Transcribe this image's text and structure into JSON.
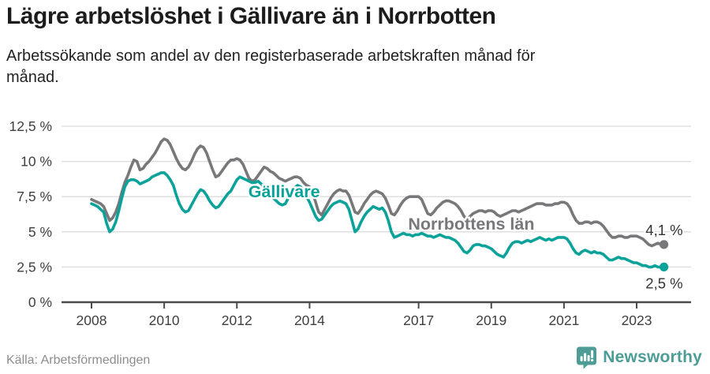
{
  "header": {
    "title": "Lägre arbetslöshet i Gällivare än i Norrbotten",
    "subtitle": "Arbetssökande som andel av den registerbaserade arbetskraften månad för månad.",
    "subtitle_line1": "Arbetssökande som andel av den registerbaserade arbetskraften månad för",
    "subtitle_line2": "månad."
  },
  "footer": {
    "source": "Källa: Arbetsförmedlingen",
    "logo_text": "Newsworthy"
  },
  "colors": {
    "gallivare": "#0ba29a",
    "norrbotten": "#78787a",
    "gridline": "#dcdcdc",
    "axis": "#4a4a4a",
    "tick_label": "#3f3f3f",
    "end_label": "#333333",
    "logo": "#4e9c96",
    "background": "#ffffff"
  },
  "chart_data": {
    "type": "line",
    "title": "Lägre arbetslöshet i Gällivare än i Norrbotten",
    "xlabel": "",
    "ylabel": "Arbetssökande som andel av den registerbaserade arbetskraften",
    "unit": "%",
    "grid": true,
    "legend_position": "inline-labels",
    "x_start_year": 2008,
    "x_months_per_step": 1,
    "x_end_year_approx": 2023.75,
    "ylim": [
      0,
      12.5
    ],
    "y_ticks": [
      {
        "value": 0,
        "label": "0 %"
      },
      {
        "value": 2.5,
        "label": "2,5 %"
      },
      {
        "value": 5,
        "label": "5 %"
      },
      {
        "value": 7.5,
        "label": "7,5 %"
      },
      {
        "value": 10,
        "label": "10 %"
      },
      {
        "value": 12.5,
        "label": "12,5 %"
      }
    ],
    "x_ticks": [
      {
        "value": 2008,
        "label": "2008"
      },
      {
        "value": 2010,
        "label": "2010"
      },
      {
        "value": 2012,
        "label": "2012"
      },
      {
        "value": 2014,
        "label": "2014"
      },
      {
        "value": 2017,
        "label": "2017"
      },
      {
        "value": 2019,
        "label": "2019"
      },
      {
        "value": 2021,
        "label": "2021"
      },
      {
        "value": 2023,
        "label": "2023"
      }
    ],
    "series": [
      {
        "name": "Norrbottens län",
        "key": "norrbotten",
        "end_label": "4,1 %",
        "end_value": 4.1,
        "end_label_position": "above",
        "inline_label": {
          "year": 2018.45,
          "pct": 5.55
        },
        "values": [
          7.3,
          7.2,
          7.1,
          7.0,
          6.8,
          6.3,
          5.8,
          6.0,
          6.4,
          7.0,
          7.8,
          8.5,
          9.0,
          9.6,
          10.1,
          10.0,
          9.4,
          9.5,
          9.8,
          10.0,
          10.3,
          10.6,
          11.0,
          11.4,
          11.6,
          11.5,
          11.2,
          10.7,
          10.2,
          9.8,
          9.5,
          9.4,
          9.6,
          10.0,
          10.5,
          10.9,
          11.1,
          11.0,
          10.6,
          10.0,
          9.4,
          8.9,
          9.0,
          9.3,
          9.6,
          9.9,
          10.1,
          10.1,
          10.2,
          10.1,
          9.8,
          9.3,
          8.8,
          8.6,
          8.7,
          9.0,
          9.3,
          9.6,
          9.5,
          9.3,
          9.2,
          9.0,
          8.8,
          8.7,
          8.6,
          8.7,
          8.8,
          8.9,
          8.9,
          8.8,
          8.5,
          8.3,
          8.2,
          7.8,
          7.1,
          6.4,
          6.2,
          6.6,
          7.0,
          7.4,
          7.7,
          7.9,
          8.0,
          7.9,
          7.9,
          7.6,
          7.0,
          6.4,
          6.3,
          6.6,
          7.0,
          7.3,
          7.6,
          7.8,
          7.9,
          7.8,
          7.7,
          7.4,
          6.9,
          6.3,
          6.2,
          6.5,
          6.9,
          7.2,
          7.4,
          7.5,
          7.5,
          7.5,
          7.5,
          7.3,
          6.8,
          6.3,
          6.2,
          6.4,
          6.7,
          6.9,
          7.1,
          7.2,
          7.2,
          7.1,
          7.0,
          6.8,
          6.5,
          6.1,
          5.9,
          6.1,
          6.3,
          6.4,
          6.5,
          6.5,
          6.4,
          6.5,
          6.5,
          6.4,
          6.2,
          6.1,
          6.2,
          6.3,
          6.4,
          6.5,
          6.5,
          6.4,
          6.5,
          6.6,
          6.7,
          6.8,
          6.9,
          7.0,
          7.0,
          7.0,
          6.9,
          6.9,
          6.9,
          7.0,
          7.0,
          7.1,
          7.1,
          7.0,
          6.7,
          6.2,
          5.8,
          5.6,
          5.6,
          5.7,
          5.7,
          5.6,
          5.7,
          5.7,
          5.6,
          5.4,
          5.1,
          4.8,
          4.6,
          4.6,
          4.7,
          4.7,
          4.6,
          4.6,
          4.7,
          4.7,
          4.7,
          4.6,
          4.5,
          4.3,
          4.1,
          4.0,
          4.1,
          4.2,
          4.1,
          4.1
        ]
      },
      {
        "name": "Gällivare",
        "key": "gallivare",
        "end_label": "2,5 %",
        "end_value": 2.5,
        "end_label_position": "below",
        "inline_label": {
          "year": 2013.3,
          "pct": 7.85
        },
        "values": [
          7.0,
          6.9,
          6.8,
          6.6,
          6.4,
          5.6,
          5.0,
          5.2,
          5.7,
          6.5,
          7.4,
          8.2,
          8.6,
          8.7,
          8.7,
          8.6,
          8.4,
          8.5,
          8.6,
          8.7,
          8.9,
          9.0,
          9.1,
          9.2,
          9.2,
          9.0,
          8.7,
          8.3,
          7.6,
          7.0,
          6.6,
          6.4,
          6.5,
          6.9,
          7.3,
          7.7,
          8.0,
          7.9,
          7.6,
          7.2,
          6.9,
          6.7,
          6.8,
          7.1,
          7.4,
          7.7,
          7.9,
          8.3,
          8.7,
          8.9,
          8.8,
          8.7,
          8.6,
          8.5,
          8.5,
          8.6,
          8.4,
          8.2,
          7.9,
          7.6,
          7.4,
          7.2,
          7.0,
          6.9,
          7.0,
          7.4,
          7.8,
          8.1,
          8.3,
          8.2,
          7.9,
          7.5,
          7.1,
          6.6,
          6.1,
          5.8,
          5.9,
          6.2,
          6.5,
          6.8,
          7.0,
          7.1,
          7.2,
          7.1,
          7.0,
          6.6,
          5.8,
          5.0,
          5.2,
          5.7,
          6.1,
          6.4,
          6.6,
          6.8,
          6.7,
          6.6,
          6.7,
          6.4,
          5.8,
          5.0,
          4.6,
          4.7,
          4.8,
          4.9,
          4.8,
          4.8,
          4.7,
          4.8,
          4.8,
          4.9,
          4.8,
          4.7,
          4.7,
          4.6,
          4.7,
          4.8,
          4.7,
          4.6,
          4.6,
          4.5,
          4.4,
          4.2,
          3.9,
          3.6,
          3.5,
          3.7,
          4.0,
          4.1,
          4.1,
          4.0,
          4.0,
          3.9,
          3.8,
          3.6,
          3.4,
          3.3,
          3.2,
          3.5,
          3.9,
          4.2,
          4.3,
          4.3,
          4.2,
          4.3,
          4.4,
          4.3,
          4.4,
          4.5,
          4.6,
          4.5,
          4.4,
          4.5,
          4.4,
          4.5,
          4.6,
          4.6,
          4.6,
          4.5,
          4.2,
          3.8,
          3.5,
          3.4,
          3.6,
          3.7,
          3.6,
          3.5,
          3.6,
          3.5,
          3.5,
          3.4,
          3.2,
          3.0,
          3.0,
          3.1,
          3.2,
          3.1,
          3.1,
          3.0,
          2.9,
          2.8,
          2.8,
          2.7,
          2.6,
          2.6,
          2.5,
          2.5,
          2.6,
          2.5,
          2.5,
          2.5
        ]
      }
    ]
  }
}
